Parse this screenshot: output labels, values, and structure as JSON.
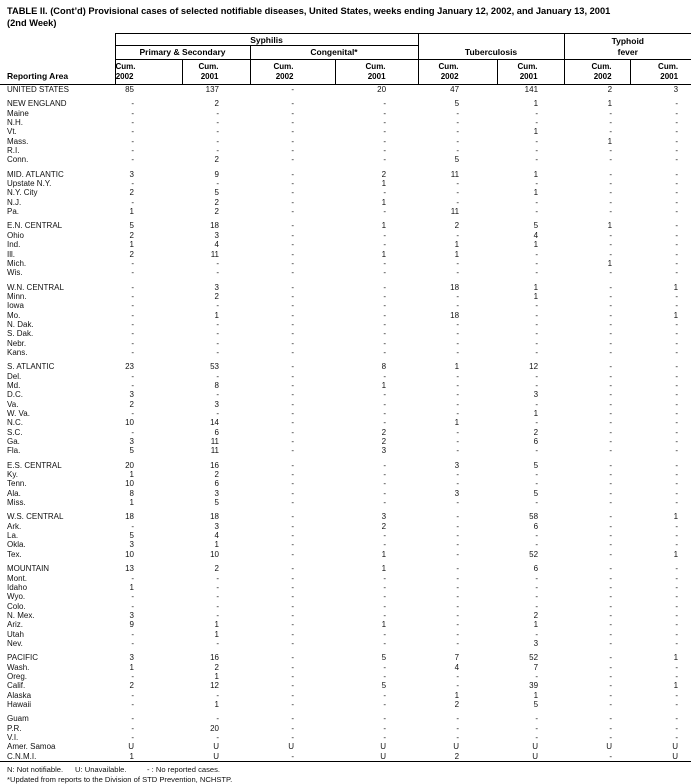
{
  "title": {
    "line1": "TABLE II. (Cont’d) Provisional cases of selected notifiable diseases, United States, weeks ending January 12, 2002, and January 13, 2001",
    "line2": "(2nd Week)"
  },
  "header": {
    "reporting_area": "Reporting Area",
    "syphilis": "Syphilis",
    "primary_secondary": "Primary & Secondary",
    "congenital": "Congenital*",
    "tuberculosis": "Tuberculosis",
    "typhoid_line1": "Typhoid",
    "typhoid_line2": "fever",
    "columns": [
      {
        "line1": "Cum.",
        "line2": "2002"
      },
      {
        "line1": "Cum.",
        "line2": "2001"
      },
      {
        "line1": "Cum.",
        "line2": "2002"
      },
      {
        "line1": "Cum.",
        "line2": "2001"
      },
      {
        "line1": "Cum.",
        "line2": "2002"
      },
      {
        "line1": "Cum.",
        "line2": "2001"
      },
      {
        "line1": "Cum.",
        "line2": "2002"
      },
      {
        "line1": "Cum.",
        "line2": "2001"
      }
    ]
  },
  "groups": [
    {
      "rows": [
        {
          "area": "UNITED STATES",
          "values": [
            "85",
            "137",
            "-",
            "20",
            "47",
            "141",
            "2",
            "3"
          ]
        }
      ]
    },
    {
      "rows": [
        {
          "area": "NEW ENGLAND",
          "values": [
            "-",
            "2",
            "-",
            "-",
            "5",
            "1",
            "1",
            "-"
          ]
        },
        {
          "area": "Maine",
          "values": [
            "-",
            "-",
            "-",
            "-",
            "-",
            "-",
            "-",
            "-"
          ]
        },
        {
          "area": "N.H.",
          "values": [
            "-",
            "-",
            "-",
            "-",
            "-",
            "-",
            "-",
            "-"
          ]
        },
        {
          "area": "Vt.",
          "values": [
            "-",
            "-",
            "-",
            "-",
            "-",
            "1",
            "-",
            "-"
          ]
        },
        {
          "area": "Mass.",
          "values": [
            "-",
            "-",
            "-",
            "-",
            "-",
            "-",
            "1",
            "-"
          ]
        },
        {
          "area": "R.I.",
          "values": [
            "-",
            "-",
            "-",
            "-",
            "-",
            "-",
            "-",
            "-"
          ]
        },
        {
          "area": "Conn.",
          "values": [
            "-",
            "2",
            "-",
            "-",
            "5",
            "-",
            "-",
            "-"
          ]
        }
      ]
    },
    {
      "rows": [
        {
          "area": "MID. ATLANTIC",
          "values": [
            "3",
            "9",
            "-",
            "2",
            "11",
            "1",
            "-",
            "-"
          ]
        },
        {
          "area": "Upstate N.Y.",
          "values": [
            "-",
            "-",
            "-",
            "1",
            "-",
            "-",
            "-",
            "-"
          ]
        },
        {
          "area": "N.Y. City",
          "values": [
            "2",
            "5",
            "-",
            "-",
            "-",
            "1",
            "-",
            "-"
          ]
        },
        {
          "area": "N.J.",
          "values": [
            "-",
            "2",
            "-",
            "1",
            "-",
            "-",
            "-",
            "-"
          ]
        },
        {
          "area": "Pa.",
          "values": [
            "1",
            "2",
            "-",
            "-",
            "11",
            "-",
            "-",
            "-"
          ]
        }
      ]
    },
    {
      "rows": [
        {
          "area": "E.N. CENTRAL",
          "values": [
            "5",
            "18",
            "-",
            "1",
            "2",
            "5",
            "1",
            "-"
          ]
        },
        {
          "area": "Ohio",
          "values": [
            "2",
            "3",
            "-",
            "-",
            "-",
            "4",
            "-",
            "-"
          ]
        },
        {
          "area": "Ind.",
          "values": [
            "1",
            "4",
            "-",
            "-",
            "1",
            "1",
            "-",
            "-"
          ]
        },
        {
          "area": "Ill.",
          "values": [
            "2",
            "11",
            "-",
            "1",
            "1",
            "-",
            "-",
            "-"
          ]
        },
        {
          "area": "Mich.",
          "values": [
            "-",
            "-",
            "-",
            "-",
            "-",
            "-",
            "1",
            "-"
          ]
        },
        {
          "area": "Wis.",
          "values": [
            "-",
            "-",
            "-",
            "-",
            "-",
            "-",
            "-",
            "-"
          ]
        }
      ]
    },
    {
      "rows": [
        {
          "area": "W.N. CENTRAL",
          "values": [
            "-",
            "3",
            "-",
            "-",
            "18",
            "1",
            "-",
            "1"
          ]
        },
        {
          "area": "Minn.",
          "values": [
            "-",
            "2",
            "-",
            "-",
            "-",
            "1",
            "-",
            "-"
          ]
        },
        {
          "area": "Iowa",
          "values": [
            "-",
            "-",
            "-",
            "-",
            "-",
            "-",
            "-",
            "-"
          ]
        },
        {
          "area": "Mo.",
          "values": [
            "-",
            "1",
            "-",
            "-",
            "18",
            "-",
            "-",
            "1"
          ]
        },
        {
          "area": "N. Dak.",
          "values": [
            "-",
            "-",
            "-",
            "-",
            "-",
            "-",
            "-",
            "-"
          ]
        },
        {
          "area": "S. Dak.",
          "values": [
            "-",
            "-",
            "-",
            "-",
            "-",
            "-",
            "-",
            "-"
          ]
        },
        {
          "area": "Nebr.",
          "values": [
            "-",
            "-",
            "-",
            "-",
            "-",
            "-",
            "-",
            "-"
          ]
        },
        {
          "area": "Kans.",
          "values": [
            "-",
            "-",
            "-",
            "-",
            "-",
            "-",
            "-",
            "-"
          ]
        }
      ]
    },
    {
      "rows": [
        {
          "area": "S. ATLANTIC",
          "values": [
            "23",
            "53",
            "-",
            "8",
            "1",
            "12",
            "-",
            "-"
          ]
        },
        {
          "area": "Del.",
          "values": [
            "-",
            "-",
            "-",
            "-",
            "-",
            "-",
            "-",
            "-"
          ]
        },
        {
          "area": "Md.",
          "values": [
            "-",
            "8",
            "-",
            "1",
            "-",
            "-",
            "-",
            "-"
          ]
        },
        {
          "area": "D.C.",
          "values": [
            "3",
            "-",
            "-",
            "-",
            "-",
            "3",
            "-",
            "-"
          ]
        },
        {
          "area": "Va.",
          "values": [
            "2",
            "3",
            "-",
            "-",
            "-",
            "-",
            "-",
            "-"
          ]
        },
        {
          "area": "W. Va.",
          "values": [
            "-",
            "-",
            "-",
            "-",
            "-",
            "1",
            "-",
            "-"
          ]
        },
        {
          "area": "N.C.",
          "values": [
            "10",
            "14",
            "-",
            "-",
            "1",
            "-",
            "-",
            "-"
          ]
        },
        {
          "area": "S.C.",
          "values": [
            "-",
            "6",
            "-",
            "2",
            "-",
            "2",
            "-",
            "-"
          ]
        },
        {
          "area": "Ga.",
          "values": [
            "3",
            "11",
            "-",
            "2",
            "-",
            "6",
            "-",
            "-"
          ]
        },
        {
          "area": "Fla.",
          "values": [
            "5",
            "11",
            "-",
            "3",
            "-",
            "-",
            "-",
            "-"
          ]
        }
      ]
    },
    {
      "rows": [
        {
          "area": "E.S. CENTRAL",
          "values": [
            "20",
            "16",
            "-",
            "-",
            "3",
            "5",
            "-",
            "-"
          ]
        },
        {
          "area": "Ky.",
          "values": [
            "1",
            "2",
            "-",
            "-",
            "-",
            "-",
            "-",
            "-"
          ]
        },
        {
          "area": "Tenn.",
          "values": [
            "10",
            "6",
            "-",
            "-",
            "-",
            "-",
            "-",
            "-"
          ]
        },
        {
          "area": "Ala.",
          "values": [
            "8",
            "3",
            "-",
            "-",
            "3",
            "5",
            "-",
            "-"
          ]
        },
        {
          "area": "Miss.",
          "values": [
            "1",
            "5",
            "-",
            "-",
            "-",
            "-",
            "-",
            "-"
          ]
        }
      ]
    },
    {
      "rows": [
        {
          "area": "W.S. CENTRAL",
          "values": [
            "18",
            "18",
            "-",
            "3",
            "-",
            "58",
            "-",
            "1"
          ]
        },
        {
          "area": "Ark.",
          "values": [
            "-",
            "3",
            "-",
            "2",
            "-",
            "6",
            "-",
            "-"
          ]
        },
        {
          "area": "La.",
          "values": [
            "5",
            "4",
            "-",
            "-",
            "-",
            "-",
            "-",
            "-"
          ]
        },
        {
          "area": "Okla.",
          "values": [
            "3",
            "1",
            "-",
            "-",
            "-",
            "-",
            "-",
            "-"
          ]
        },
        {
          "area": "Tex.",
          "values": [
            "10",
            "10",
            "-",
            "1",
            "-",
            "52",
            "-",
            "1"
          ]
        }
      ]
    },
    {
      "rows": [
        {
          "area": "MOUNTAIN",
          "values": [
            "13",
            "2",
            "-",
            "1",
            "-",
            "6",
            "-",
            "-"
          ]
        },
        {
          "area": "Mont.",
          "values": [
            "-",
            "-",
            "-",
            "-",
            "-",
            "-",
            "-",
            "-"
          ]
        },
        {
          "area": "Idaho",
          "values": [
            "1",
            "-",
            "-",
            "-",
            "-",
            "-",
            "-",
            "-"
          ]
        },
        {
          "area": "Wyo.",
          "values": [
            "-",
            "-",
            "-",
            "-",
            "-",
            "-",
            "-",
            "-"
          ]
        },
        {
          "area": "Colo.",
          "values": [
            "-",
            "-",
            "-",
            "-",
            "-",
            "-",
            "-",
            "-"
          ]
        },
        {
          "area": "N. Mex.",
          "values": [
            "3",
            "-",
            "-",
            "-",
            "-",
            "2",
            "-",
            "-"
          ]
        },
        {
          "area": "Ariz.",
          "values": [
            "9",
            "1",
            "-",
            "1",
            "-",
            "1",
            "-",
            "-"
          ]
        },
        {
          "area": "Utah",
          "values": [
            "-",
            "1",
            "-",
            "-",
            "-",
            "-",
            "-",
            "-"
          ]
        },
        {
          "area": "Nev.",
          "values": [
            "-",
            "-",
            "-",
            "-",
            "-",
            "3",
            "-",
            "-"
          ]
        }
      ]
    },
    {
      "rows": [
        {
          "area": "PACIFIC",
          "values": [
            "3",
            "16",
            "-",
            "5",
            "7",
            "52",
            "-",
            "1"
          ]
        },
        {
          "area": "Wash.",
          "values": [
            "1",
            "2",
            "-",
            "-",
            "4",
            "7",
            "-",
            "-"
          ]
        },
        {
          "area": "Oreg.",
          "values": [
            "-",
            "1",
            "-",
            "-",
            "-",
            "-",
            "-",
            "-"
          ]
        },
        {
          "area": "Calif.",
          "values": [
            "2",
            "12",
            "-",
            "5",
            "-",
            "39",
            "-",
            "1"
          ]
        },
        {
          "area": "Alaska",
          "values": [
            "-",
            "-",
            "-",
            "-",
            "1",
            "1",
            "-",
            "-"
          ]
        },
        {
          "area": "Hawaii",
          "values": [
            "-",
            "1",
            "-",
            "-",
            "2",
            "5",
            "-",
            "-"
          ]
        }
      ]
    },
    {
      "rows": [
        {
          "area": "Guam",
          "values": [
            "-",
            "-",
            "-",
            "-",
            "-",
            "-",
            "-",
            "-"
          ]
        },
        {
          "area": "P.R.",
          "values": [
            "-",
            "20",
            "-",
            "-",
            "-",
            "-",
            "-",
            "-"
          ]
        },
        {
          "area": "V.I.",
          "values": [
            "-",
            "-",
            "-",
            "-",
            "-",
            "-",
            "-",
            "-"
          ]
        },
        {
          "area": "Amer. Samoa",
          "values": [
            "U",
            "U",
            "U",
            "U",
            "U",
            "U",
            "U",
            "U"
          ]
        },
        {
          "area": "C.N.M.I.",
          "values": [
            "1",
            "U",
            "-",
            "U",
            "2",
            "U",
            "-",
            "U"
          ]
        }
      ]
    }
  ],
  "footnotes": {
    "n": "N: Not notifiable.",
    "u": "U: Unavailable.",
    "dash": "- : No reported cases.",
    "updated": "*Updated from reports to the Division of STD Prevention, NCHSTP."
  }
}
